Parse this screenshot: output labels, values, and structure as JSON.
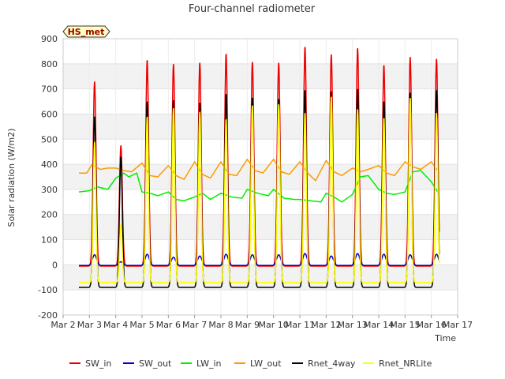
{
  "chart_data": {
    "type": "line",
    "title": "Four-channel radiometer",
    "xlabel": "Time",
    "ylabel": "Solar radiation (W/m2)",
    "site_label": "HS_met",
    "xlim": [
      2,
      17
    ],
    "ylim": [
      -200,
      900
    ],
    "x_ticks": [
      2,
      3,
      4,
      5,
      6,
      7,
      8,
      9,
      10,
      11,
      12,
      13,
      14,
      15,
      16,
      17
    ],
    "x_tick_labels": [
      "Mar 2",
      "Mar 3",
      "Mar 4",
      "Mar 5",
      "Mar 6",
      "Mar 7",
      "Mar 8",
      "Mar 9",
      "Mar 10",
      "Mar 11",
      "Mar 12",
      "Mar 13",
      "Mar 14",
      "Mar 15",
      "Mar 16",
      "Mar 17"
    ],
    "y_ticks": [
      -200,
      -100,
      0,
      100,
      200,
      300,
      400,
      500,
      600,
      700,
      800,
      900
    ],
    "grid": true,
    "legend_position": "bottom",
    "x_units": "day of March",
    "series": [
      {
        "name": "SW_in",
        "color": "#ee0000",
        "kind": "diurnal",
        "night": -5,
        "noon": 4.7,
        "width": 0.11,
        "peaks": [
          {
            "day": 3,
            "value": 730
          },
          {
            "day": 4,
            "value": 475
          },
          {
            "day": 5,
            "value": 815
          },
          {
            "day": 6,
            "value": 800
          },
          {
            "day": 7,
            "value": 805
          },
          {
            "day": 8,
            "value": 840
          },
          {
            "day": 9,
            "value": 808
          },
          {
            "day": 10,
            "value": 805
          },
          {
            "day": 11,
            "value": 868
          },
          {
            "day": 12,
            "value": 838
          },
          {
            "day": 13,
            "value": 863
          },
          {
            "day": 14,
            "value": 795
          },
          {
            "day": 15,
            "value": 828
          },
          {
            "day": 16,
            "value": 820
          }
        ]
      },
      {
        "name": "SW_out",
        "color": "#0000cc",
        "kind": "diurnal",
        "night": -3,
        "noon": 4.7,
        "width": 0.16,
        "peaks": [
          {
            "day": 3,
            "value": 40
          },
          {
            "day": 4,
            "value": 12
          },
          {
            "day": 5,
            "value": 42
          },
          {
            "day": 6,
            "value": 30
          },
          {
            "day": 7,
            "value": 35
          },
          {
            "day": 8,
            "value": 42
          },
          {
            "day": 9,
            "value": 40
          },
          {
            "day": 10,
            "value": 40
          },
          {
            "day": 11,
            "value": 45
          },
          {
            "day": 12,
            "value": 35
          },
          {
            "day": 13,
            "value": 45
          },
          {
            "day": 14,
            "value": 42
          },
          {
            "day": 15,
            "value": 40
          },
          {
            "day": 16,
            "value": 42
          }
        ]
      },
      {
        "name": "LW_in",
        "color": "#00ee00",
        "kind": "continuous",
        "x": [
          2.6,
          3.0,
          3.3,
          3.7,
          4.0,
          4.3,
          4.5,
          4.8,
          5.0,
          5.3,
          5.6,
          6.0,
          6.3,
          6.6,
          7.0,
          7.3,
          7.6,
          8.0,
          8.4,
          8.8,
          9.0,
          9.4,
          9.8,
          10.0,
          10.4,
          10.8,
          11.0,
          11.4,
          11.8,
          12.0,
          12.3,
          12.6,
          13.0,
          13.3,
          13.6,
          14.0,
          14.3,
          14.6,
          15.0,
          15.3,
          15.6,
          16.0,
          16.3
        ],
        "y": [
          290,
          295,
          310,
          300,
          345,
          365,
          350,
          365,
          290,
          285,
          275,
          290,
          260,
          255,
          270,
          285,
          260,
          285,
          270,
          265,
          300,
          285,
          275,
          300,
          265,
          260,
          260,
          255,
          250,
          285,
          270,
          250,
          280,
          350,
          355,
          300,
          285,
          280,
          290,
          370,
          375,
          330,
          280
        ]
      },
      {
        "name": "LW_out",
        "color": "#ff9900",
        "kind": "continuous",
        "x": [
          2.6,
          2.9,
          3.1,
          3.4,
          3.7,
          4.0,
          4.3,
          4.6,
          5.0,
          5.3,
          5.6,
          6.0,
          6.3,
          6.6,
          7.0,
          7.3,
          7.6,
          8.0,
          8.3,
          8.6,
          9.0,
          9.3,
          9.6,
          10.0,
          10.3,
          10.6,
          11.0,
          11.3,
          11.6,
          12.0,
          12.3,
          12.6,
          13.0,
          13.3,
          13.6,
          14.0,
          14.3,
          14.6,
          15.0,
          15.3,
          15.6,
          16.0,
          16.3
        ],
        "y": [
          365,
          365,
          400,
          380,
          385,
          385,
          375,
          370,
          405,
          355,
          350,
          395,
          355,
          340,
          410,
          360,
          345,
          410,
          360,
          355,
          420,
          375,
          365,
          420,
          370,
          360,
          410,
          365,
          335,
          415,
          370,
          355,
          385,
          370,
          380,
          395,
          365,
          355,
          410,
          390,
          380,
          410,
          365
        ]
      },
      {
        "name": "Rnet_4way",
        "color": "#000000",
        "kind": "diurnal",
        "night": -90,
        "noon": 4.7,
        "width": 0.11,
        "peaks": [
          {
            "day": 3,
            "value": 590
          },
          {
            "day": 4,
            "value": 430
          },
          {
            "day": 5,
            "value": 650
          },
          {
            "day": 6,
            "value": 655
          },
          {
            "day": 7,
            "value": 645
          },
          {
            "day": 8,
            "value": 680
          },
          {
            "day": 9,
            "value": 665
          },
          {
            "day": 10,
            "value": 660
          },
          {
            "day": 11,
            "value": 695
          },
          {
            "day": 12,
            "value": 690
          },
          {
            "day": 13,
            "value": 700
          },
          {
            "day": 14,
            "value": 650
          },
          {
            "day": 15,
            "value": 685
          },
          {
            "day": 16,
            "value": 695
          }
        ]
      },
      {
        "name": "Rnet_NRLite",
        "color": "#ffff00",
        "kind": "diurnal",
        "night": -70,
        "noon": 4.7,
        "width": 0.1,
        "peaks": [
          {
            "day": 3,
            "value": 490
          },
          {
            "day": 4,
            "value": 160
          },
          {
            "day": 5,
            "value": 590
          },
          {
            "day": 6,
            "value": 625
          },
          {
            "day": 7,
            "value": 610
          },
          {
            "day": 8,
            "value": 580
          },
          {
            "day": 9,
            "value": 635
          },
          {
            "day": 10,
            "value": 640
          },
          {
            "day": 11,
            "value": 605
          },
          {
            "day": 12,
            "value": 670
          },
          {
            "day": 13,
            "value": 620
          },
          {
            "day": 14,
            "value": 585
          },
          {
            "day": 15,
            "value": 665
          },
          {
            "day": 16,
            "value": 605
          }
        ]
      }
    ]
  }
}
